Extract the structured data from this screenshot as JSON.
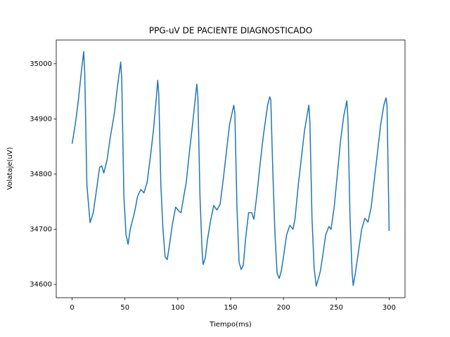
{
  "chart_data": {
    "type": "line",
    "title": "PPG-uV DE PACIENTE DIAGNOSTICADO",
    "x_label": "Tiempo(ms)",
    "y_label": "Volataje(uV)",
    "color": "#1f77b4",
    "xlim": [
      -15,
      315
    ],
    "xticks": [
      0,
      50,
      100,
      150,
      200,
      250,
      300
    ],
    "ylim": [
      34576,
      35043
    ],
    "yticks": [
      34600,
      34700,
      34800,
      34900,
      35000
    ],
    "x": [
      0,
      3,
      6,
      9,
      11,
      12,
      14,
      17,
      20,
      23,
      26,
      28,
      30,
      33,
      36,
      40,
      43,
      46,
      47,
      49,
      51,
      53,
      55,
      59,
      62,
      65,
      68,
      71,
      74,
      77,
      80,
      81,
      82,
      84,
      86,
      88,
      90,
      92,
      95,
      98,
      101,
      103,
      105,
      108,
      111,
      114,
      117,
      118,
      119,
      121,
      123,
      124,
      126,
      128,
      131,
      134,
      137,
      140,
      143,
      146,
      149,
      153,
      154,
      156,
      158,
      160,
      162,
      164,
      167,
      170,
      172,
      175,
      178,
      181,
      185,
      187,
      188,
      190,
      192,
      194,
      196,
      198,
      200,
      203,
      206,
      209,
      211,
      214,
      217,
      220,
      224,
      225,
      227,
      229,
      231,
      233,
      235,
      237,
      240,
      243,
      245,
      248,
      251,
      254,
      257,
      260,
      261,
      263,
      265,
      266,
      268,
      271,
      274,
      277,
      280,
      283,
      286,
      289,
      292,
      295,
      297,
      298,
      300
    ],
    "values": [
      34855,
      34890,
      34935,
      34990,
      35022,
      34980,
      34780,
      34712,
      34730,
      34770,
      34812,
      34815,
      34802,
      34825,
      34865,
      34910,
      34960,
      35003,
      34970,
      34760,
      34690,
      34673,
      34700,
      34730,
      34760,
      34772,
      34766,
      34785,
      34830,
      34880,
      34945,
      34970,
      34945,
      34780,
      34700,
      34650,
      34645,
      34670,
      34710,
      34740,
      34733,
      34730,
      34752,
      34785,
      34840,
      34890,
      34945,
      34963,
      34940,
      34760,
      34660,
      34636,
      34648,
      34680,
      34715,
      34743,
      34735,
      34745,
      34790,
      34840,
      34890,
      34925,
      34910,
      34740,
      34640,
      34627,
      34635,
      34680,
      34730,
      34730,
      34718,
      34765,
      34820,
      34870,
      34925,
      34940,
      34935,
      34800,
      34690,
      34620,
      34611,
      34625,
      34650,
      34690,
      34707,
      34700,
      34720,
      34780,
      34830,
      34880,
      34925,
      34895,
      34720,
      34630,
      34597,
      34610,
      34625,
      34650,
      34690,
      34705,
      34700,
      34740,
      34800,
      34860,
      34905,
      34933,
      34900,
      34720,
      34620,
      34598,
      34620,
      34660,
      34700,
      34720,
      34713,
      34740,
      34790,
      34840,
      34890,
      34925,
      34938,
      34925,
      34697
    ]
  }
}
